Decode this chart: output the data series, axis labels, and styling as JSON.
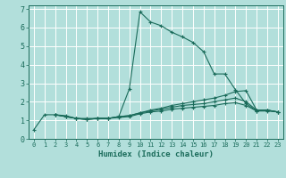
{
  "title": "",
  "xlabel": "Humidex (Indice chaleur)",
  "ylabel": "",
  "bg_color": "#b2dfdb",
  "grid_color": "#ffffff",
  "line_color": "#1a6b5a",
  "xlim": [
    -0.5,
    23.5
  ],
  "ylim": [
    0,
    7.2
  ],
  "xticks": [
    0,
    1,
    2,
    3,
    4,
    5,
    6,
    7,
    8,
    9,
    10,
    11,
    12,
    13,
    14,
    15,
    16,
    17,
    18,
    19,
    20,
    21,
    22,
    23
  ],
  "yticks": [
    0,
    1,
    2,
    3,
    4,
    5,
    6,
    7
  ],
  "series": [
    {
      "x": [
        0,
        1,
        2,
        3,
        4,
        5,
        6,
        7,
        8,
        9,
        10,
        11,
        12,
        13,
        14,
        15,
        16,
        17,
        18,
        19,
        20,
        21,
        22,
        23
      ],
      "y": [
        0.5,
        1.3,
        1.3,
        1.25,
        1.1,
        1.05,
        1.1,
        1.1,
        1.2,
        2.7,
        6.85,
        6.3,
        6.1,
        5.75,
        5.5,
        5.2,
        4.7,
        3.5,
        3.5,
        2.65,
        1.9,
        1.5,
        1.55,
        1.45
      ]
    },
    {
      "x": [
        2,
        3,
        4,
        5,
        6,
        7,
        8,
        9,
        10,
        11,
        12,
        13,
        14,
        15,
        16,
        17,
        18,
        19,
        20,
        21,
        22,
        23
      ],
      "y": [
        1.3,
        1.2,
        1.1,
        1.1,
        1.1,
        1.1,
        1.2,
        1.25,
        1.4,
        1.55,
        1.65,
        1.8,
        1.9,
        2.0,
        2.1,
        2.2,
        2.35,
        2.55,
        2.6,
        1.55,
        1.55,
        1.45
      ]
    },
    {
      "x": [
        2,
        3,
        4,
        5,
        6,
        7,
        8,
        9,
        10,
        11,
        12,
        13,
        14,
        15,
        16,
        17,
        18,
        19,
        20,
        21,
        22,
        23
      ],
      "y": [
        1.3,
        1.2,
        1.1,
        1.05,
        1.1,
        1.1,
        1.2,
        1.25,
        1.4,
        1.5,
        1.6,
        1.7,
        1.8,
        1.85,
        1.9,
        2.0,
        2.1,
        2.2,
        2.0,
        1.55,
        1.55,
        1.45
      ]
    },
    {
      "x": [
        2,
        3,
        4,
        5,
        6,
        7,
        8,
        9,
        10,
        11,
        12,
        13,
        14,
        15,
        16,
        17,
        18,
        19,
        20,
        21,
        22,
        23
      ],
      "y": [
        1.3,
        1.2,
        1.1,
        1.05,
        1.1,
        1.1,
        1.15,
        1.2,
        1.35,
        1.45,
        1.5,
        1.6,
        1.65,
        1.7,
        1.75,
        1.8,
        1.9,
        1.95,
        1.8,
        1.5,
        1.5,
        1.45
      ]
    }
  ]
}
